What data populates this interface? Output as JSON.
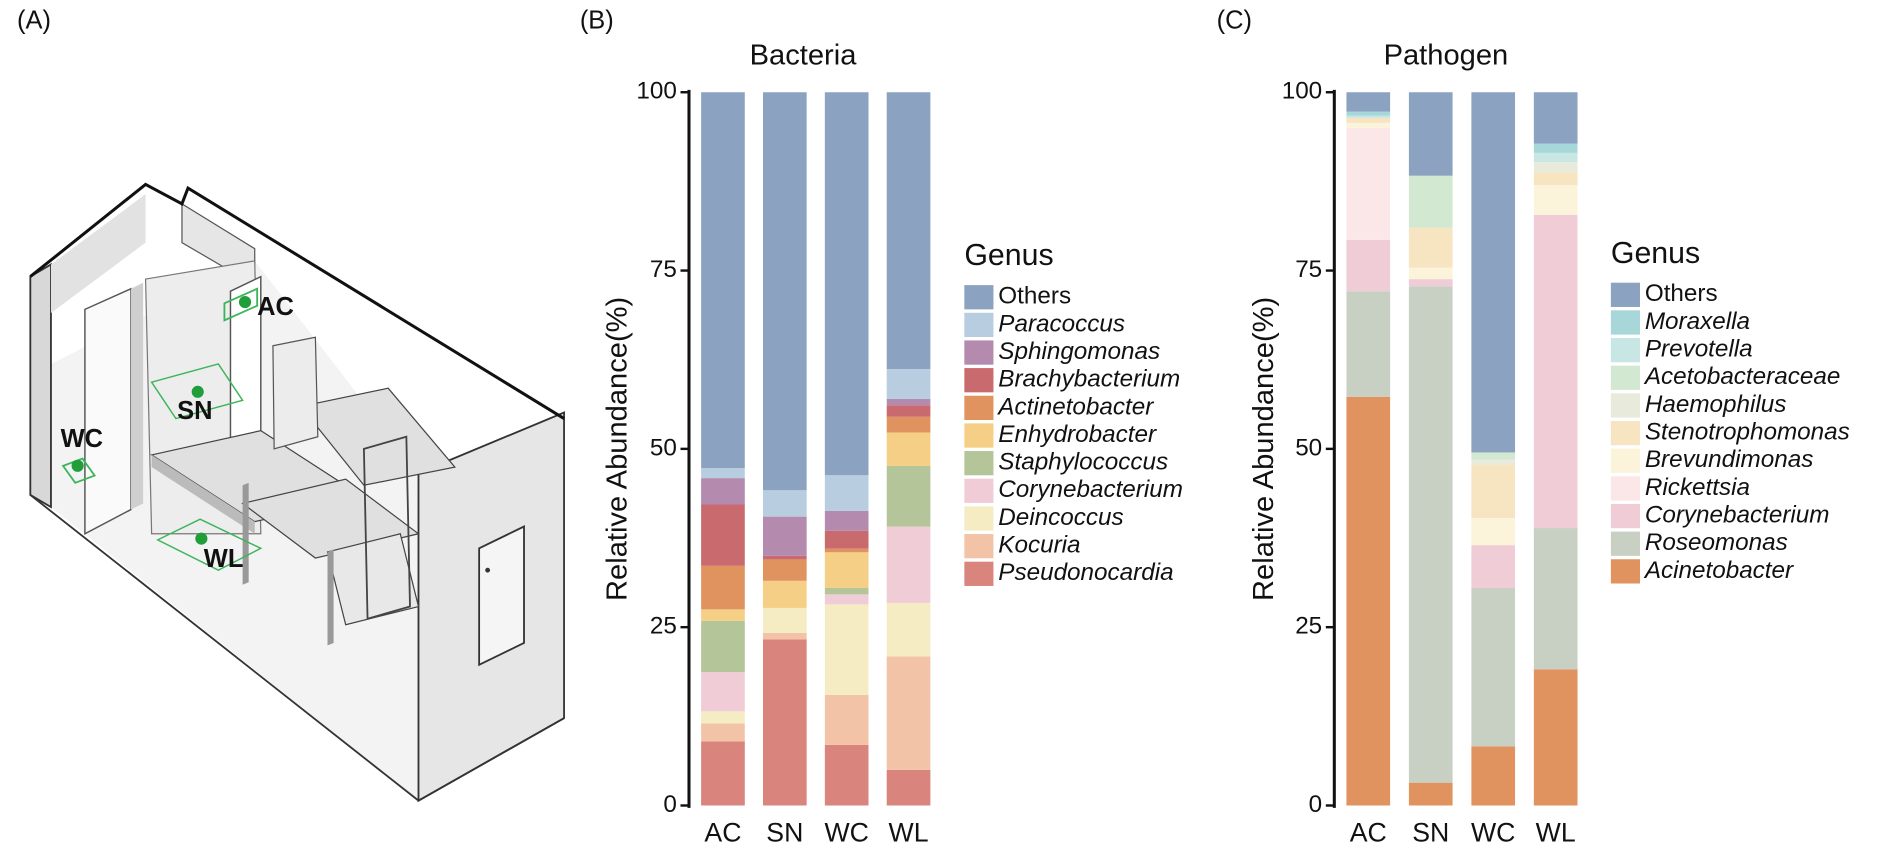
{
  "panel_labels": [
    "(A)",
    "(B)",
    "(C)"
  ],
  "illustration": {
    "labels": [
      "AC",
      "SN",
      "WC",
      "WL"
    ]
  },
  "chart_data": [
    {
      "type": "stacked_bar",
      "title": "Bacteria",
      "y_label": "Relative Abundance(%)",
      "legend_title": "Genus",
      "categories": [
        "AC",
        "SN",
        "WC",
        "WL"
      ],
      "ylim": [
        0,
        100
      ],
      "yticks": [
        0,
        25,
        50,
        75,
        100
      ],
      "series": [
        {
          "name": "Pseudonocardia",
          "color": "#d9847c",
          "values": [
            9.0,
            23.3,
            8.5,
            5.0
          ]
        },
        {
          "name": "Kocuria",
          "color": "#f3c3a8",
          "values": [
            2.5,
            0.9,
            7.0,
            15.9
          ]
        },
        {
          "name": "Deincoccus",
          "color": "#f5ecc4",
          "values": [
            1.7,
            3.5,
            12.7,
            7.5
          ]
        },
        {
          "name": "Corynebacterium",
          "color": "#f0ccd6",
          "values": [
            5.5,
            0,
            1.4,
            10.7
          ]
        },
        {
          "name": "Staphylococcus",
          "color": "#b5c59a",
          "values": [
            7.2,
            0,
            0.9,
            8.5
          ]
        },
        {
          "name": "Enhydrobacter",
          "color": "#f5cf85",
          "values": [
            1.6,
            3.8,
            5.0,
            4.7
          ]
        },
        {
          "name": "Actinetobacter",
          "color": "#e0935f",
          "values": [
            6.1,
            3.0,
            0.5,
            2.2
          ]
        },
        {
          "name": "Brachybacterium",
          "color": "#c96b6e",
          "values": [
            8.6,
            0.5,
            2.5,
            1.6
          ]
        },
        {
          "name": "Sphingomonas",
          "color": "#b48aae",
          "values": [
            3.7,
            5.5,
            2.8,
            0.9
          ]
        },
        {
          "name": "Paracoccus",
          "color": "#b8cde0",
          "values": [
            1.4,
            3.7,
            5.0,
            4.2
          ]
        },
        {
          "name": "Others",
          "color": "#8ba2c0",
          "values": [
            52.7,
            55.8,
            53.7,
            38.8
          ]
        }
      ]
    },
    {
      "type": "stacked_bar",
      "title": "Pathogen",
      "y_label": "Relative Abundance(%)",
      "legend_title": "Genus",
      "categories": [
        "AC",
        "SN",
        "WC",
        "WL"
      ],
      "ylim": [
        0,
        100
      ],
      "yticks": [
        0,
        25,
        50,
        75,
        100
      ],
      "series": [
        {
          "name": "Acinetobacter",
          "color": "#e0935f",
          "values": [
            57.3,
            3.2,
            8.3,
            19.1
          ]
        },
        {
          "name": "Roseomonas",
          "color": "#c8d0c4",
          "values": [
            14.8,
            69.6,
            22.2,
            19.8
          ]
        },
        {
          "name": "Corynebacterium",
          "color": "#f0ccd6",
          "values": [
            7.2,
            1.0,
            6.0,
            43.9
          ]
        },
        {
          "name": "Rickettsia",
          "color": "#fbe6e8",
          "values": [
            15.7,
            0,
            0,
            0
          ]
        },
        {
          "name": "Brevundimonas",
          "color": "#fbf4da",
          "values": [
            0.7,
            1.6,
            3.8,
            4.2
          ]
        },
        {
          "name": "Stenotrophomonas",
          "color": "#f7e4c0",
          "values": [
            0.7,
            5.6,
            7.5,
            1.8
          ]
        },
        {
          "name": "Haemophilus",
          "color": "#e8eadb",
          "values": [
            0,
            0,
            0.7,
            1.4
          ]
        },
        {
          "name": "Acetobacteraceae",
          "color": "#d3e8d0",
          "values": [
            0,
            7.3,
            1.0,
            0
          ]
        },
        {
          "name": "Prevotella",
          "color": "#c7e6e4",
          "values": [
            0.3,
            0,
            0,
            1.3
          ]
        },
        {
          "name": "Moraxella",
          "color": "#a7d7d9",
          "values": [
            0.6,
            0,
            0,
            1.3
          ]
        },
        {
          "name": "Others",
          "color": "#8ba2c0",
          "values": [
            2.7,
            11.7,
            50.5,
            7.2
          ]
        }
      ]
    }
  ]
}
